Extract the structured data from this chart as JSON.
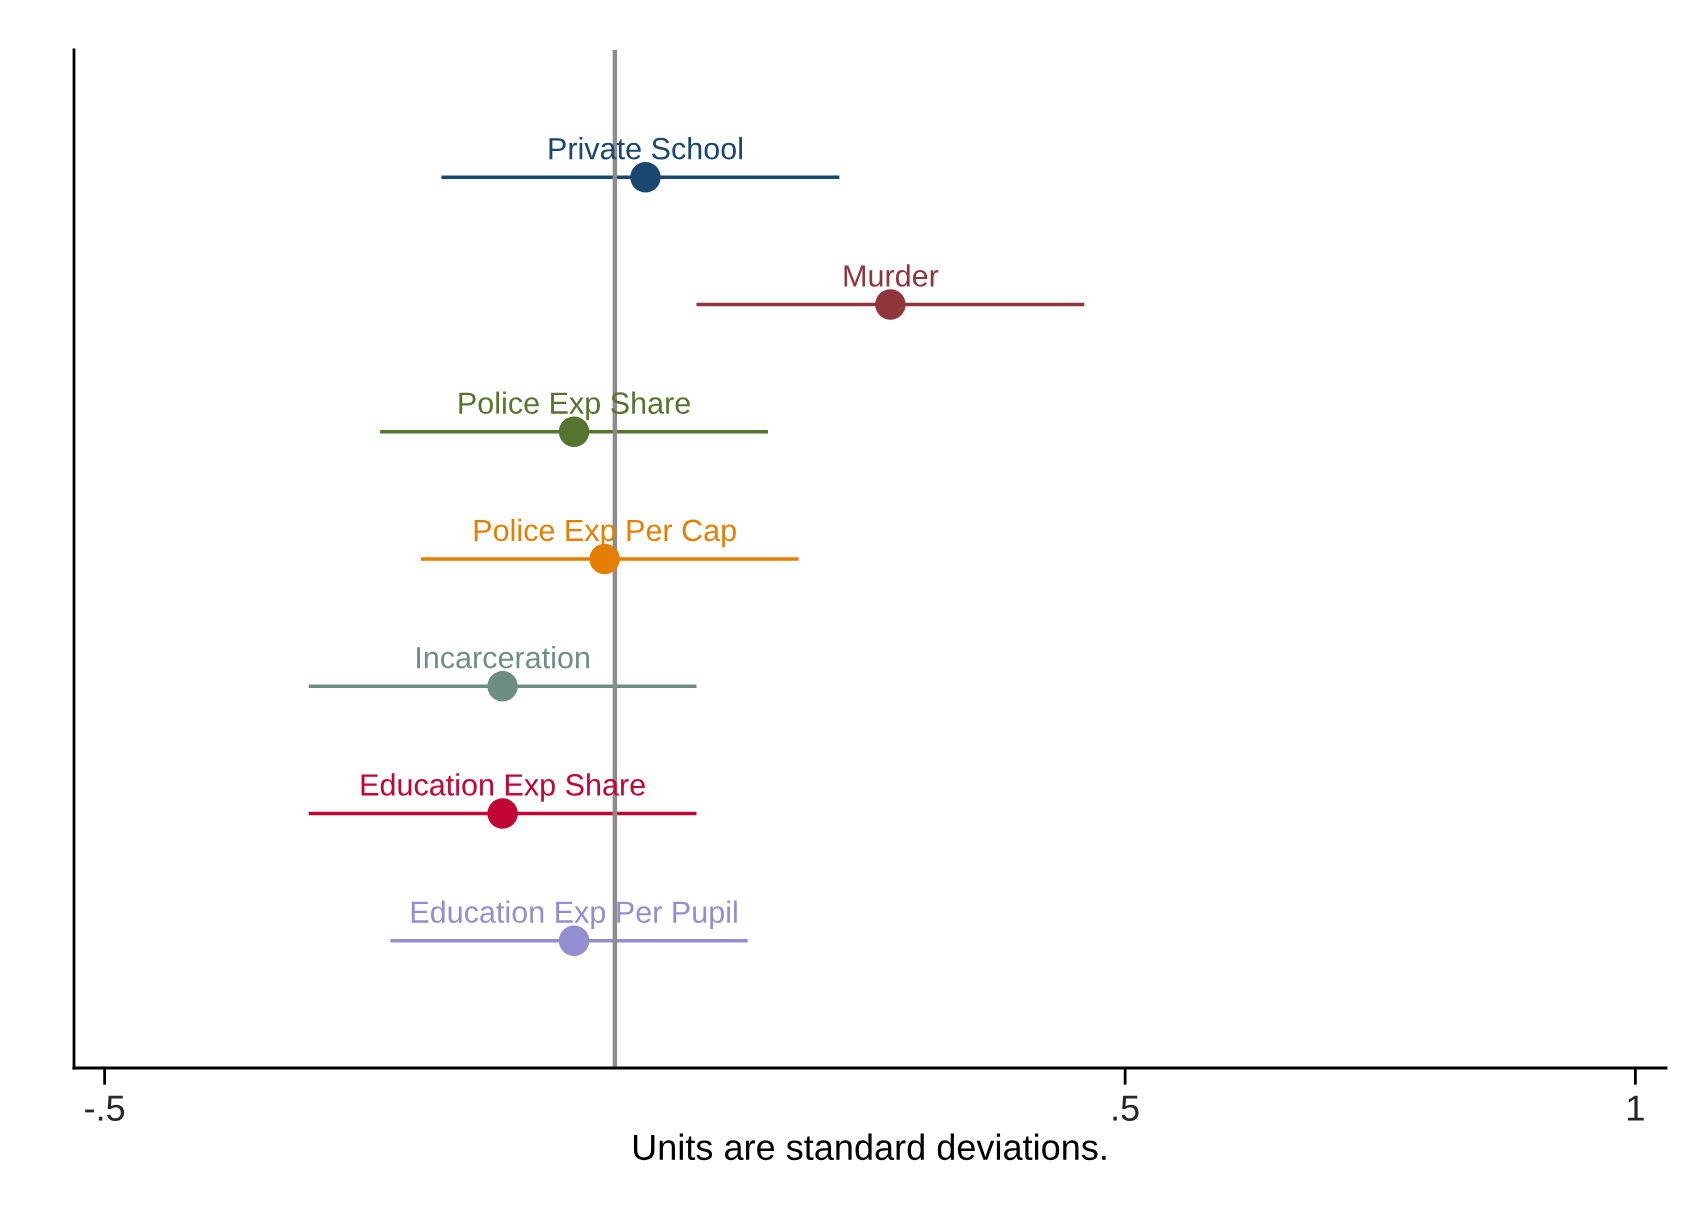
{
  "chart_data": {
    "type": "scatter",
    "orientation": "horizontal",
    "marker": "circle",
    "tick_labels": "x",
    "categories": [
      null,
      null,
      null,
      null,
      null,
      null,
      null
    ],
    "series": [
      {
        "name": "Private School",
        "color": "#1a476f",
        "values": [
          0.03,
          null,
          null,
          null,
          null,
          null,
          null
        ],
        "errors": [
          [
            -0.17,
            0.22
          ],
          null,
          null,
          null,
          null,
          null,
          null
        ]
      },
      {
        "name": "Murder",
        "color": "#90353b",
        "values": [
          null,
          0.27,
          null,
          null,
          null,
          null,
          null
        ],
        "errors": [
          null,
          [
            0.08,
            0.46
          ],
          null,
          null,
          null,
          null,
          null
        ]
      },
      {
        "name": "Police Exp Share",
        "color": "#55752f",
        "values": [
          null,
          null,
          -0.04,
          null,
          null,
          null,
          null
        ],
        "errors": [
          null,
          null,
          [
            -0.23,
            0.15
          ],
          null,
          null,
          null,
          null
        ]
      },
      {
        "name": "Police Exp Per Cap",
        "color": "#e37e00",
        "values": [
          null,
          null,
          null,
          -0.01,
          null,
          null,
          null
        ],
        "errors": [
          null,
          null,
          null,
          [
            -0.19,
            0.18
          ],
          null,
          null,
          null
        ]
      },
      {
        "name": "Incarceration",
        "color": "#6e8e84",
        "values": [
          null,
          null,
          null,
          null,
          -0.11,
          null,
          null
        ],
        "errors": [
          null,
          null,
          null,
          null,
          [
            -0.3,
            0.08
          ],
          null,
          null
        ]
      },
      {
        "name": "Education Exp Share",
        "color": "#c10534",
        "values": [
          null,
          null,
          null,
          null,
          null,
          -0.11,
          null
        ],
        "errors": [
          null,
          null,
          null,
          null,
          null,
          [
            -0.3,
            0.08
          ],
          null
        ]
      },
      {
        "name": "Education Exp Per Pupil",
        "color": "#938dd2",
        "values": [
          null,
          null,
          null,
          null,
          null,
          null,
          -0.04
        ],
        "errors": [
          null,
          null,
          null,
          null,
          null,
          null,
          [
            -0.22,
            0.13
          ]
        ]
      }
    ],
    "xlim": [
      -0.53,
      1.03
    ],
    "xticks": [
      {
        "value": -0.5,
        "label": "-.5"
      },
      {
        "value": 0.5,
        "label": ".5"
      },
      1
    ],
    "xlabel": "Units are standard deviations.",
    "ref_lines": [
      {
        "axis": "x",
        "value": 0,
        "color": "#8c8c8c"
      }
    ]
  }
}
